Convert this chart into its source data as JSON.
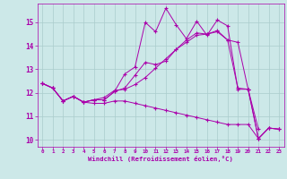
{
  "bg_color": "#cce8e8",
  "line_color": "#aa00aa",
  "grid_color": "#aacccc",
  "xlabel": "Windchill (Refroidissement éolien,°C)",
  "xlim": [
    -0.5,
    23.5
  ],
  "ylim": [
    9.7,
    15.8
  ],
  "yticks": [
    10,
    11,
    12,
    13,
    14,
    15
  ],
  "xticks": [
    0,
    1,
    2,
    3,
    4,
    5,
    6,
    7,
    8,
    9,
    10,
    11,
    12,
    13,
    14,
    15,
    16,
    17,
    18,
    19,
    20,
    21,
    22,
    23
  ],
  "line1_x": [
    0,
    1,
    2,
    3,
    4,
    5,
    6,
    7,
    8,
    9,
    10,
    11,
    12,
    13,
    14,
    15,
    16,
    17,
    18,
    19,
    20,
    21
  ],
  "line1_y": [
    12.4,
    12.2,
    11.65,
    11.85,
    11.6,
    11.7,
    11.8,
    12.1,
    12.15,
    12.35,
    12.65,
    13.05,
    13.45,
    13.85,
    14.25,
    14.55,
    14.5,
    14.6,
    14.25,
    14.15,
    12.15,
    10.45
  ],
  "line2_x": [
    0,
    1,
    2,
    3,
    4,
    5,
    6,
    7,
    8,
    9,
    10,
    11,
    12,
    13,
    14,
    15,
    16,
    17,
    18,
    19,
    20,
    21,
    22,
    23
  ],
  "line2_y": [
    12.4,
    12.2,
    11.65,
    11.85,
    11.6,
    11.7,
    11.7,
    12.05,
    12.8,
    13.1,
    15.0,
    14.6,
    15.6,
    14.9,
    14.3,
    15.05,
    14.45,
    15.1,
    14.85,
    12.15,
    12.15,
    10.05,
    10.5,
    10.45
  ],
  "line3_x": [
    0,
    1,
    2,
    3,
    4,
    5,
    6,
    7,
    8,
    9,
    10,
    11,
    12,
    13,
    14,
    15,
    16,
    17,
    18,
    19,
    20,
    21,
    22,
    23
  ],
  "line3_y": [
    12.4,
    12.2,
    11.65,
    11.85,
    11.6,
    11.7,
    11.7,
    12.05,
    12.2,
    12.75,
    13.3,
    13.2,
    13.35,
    13.85,
    14.15,
    14.45,
    14.5,
    14.65,
    14.25,
    12.2,
    12.15,
    10.05,
    10.5,
    10.45
  ],
  "line4_x": [
    0,
    1,
    2,
    3,
    4,
    5,
    6,
    7,
    8,
    9,
    10,
    11,
    12,
    13,
    14,
    15,
    16,
    17,
    18,
    19,
    20,
    21,
    22,
    23
  ],
  "line4_y": [
    12.4,
    12.2,
    11.65,
    11.85,
    11.6,
    11.55,
    11.55,
    11.65,
    11.65,
    11.55,
    11.45,
    11.35,
    11.25,
    11.15,
    11.05,
    10.95,
    10.85,
    10.75,
    10.65,
    10.65,
    10.65,
    10.05,
    10.5,
    10.45
  ]
}
